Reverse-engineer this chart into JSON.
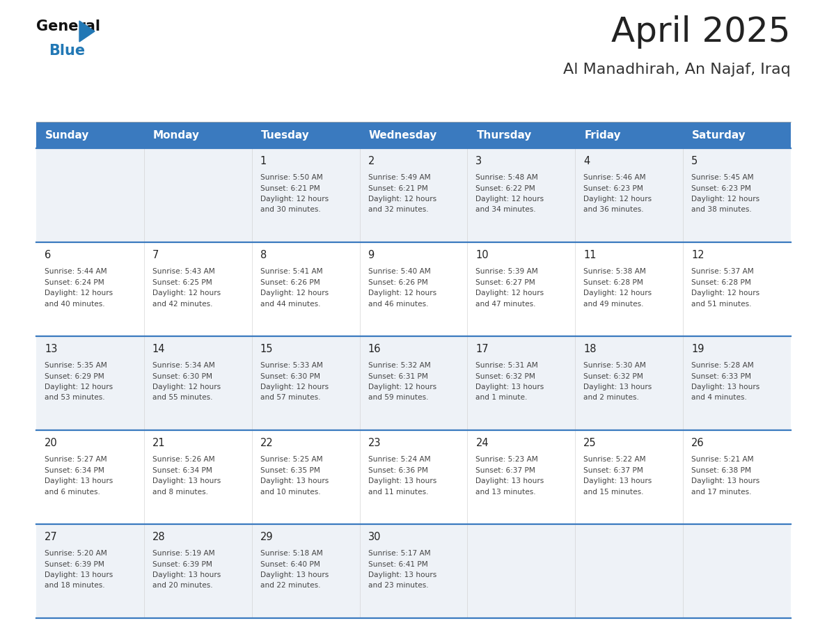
{
  "title": "April 2025",
  "subtitle": "Al Manadhirah, An Najaf, Iraq",
  "days_of_week": [
    "Sunday",
    "Monday",
    "Tuesday",
    "Wednesday",
    "Thursday",
    "Friday",
    "Saturday"
  ],
  "header_bg": "#3a7abf",
  "header_text": "#ffffff",
  "row_bg_light": "#eef2f7",
  "row_bg_white": "#ffffff",
  "week_divider": "#3a7abf",
  "title_color": "#222222",
  "subtitle_color": "#333333",
  "day_number_color": "#222222",
  "cell_text_color": "#444444",
  "logo_general_color": "#111111",
  "logo_blue_color": "#2278b5",
  "calendar_data": [
    [
      null,
      null,
      {
        "day": 1,
        "sunrise": "5:50 AM",
        "sunset": "6:21 PM",
        "daylight": "12 hours\nand 30 minutes."
      },
      {
        "day": 2,
        "sunrise": "5:49 AM",
        "sunset": "6:21 PM",
        "daylight": "12 hours\nand 32 minutes."
      },
      {
        "day": 3,
        "sunrise": "5:48 AM",
        "sunset": "6:22 PM",
        "daylight": "12 hours\nand 34 minutes."
      },
      {
        "day": 4,
        "sunrise": "5:46 AM",
        "sunset": "6:23 PM",
        "daylight": "12 hours\nand 36 minutes."
      },
      {
        "day": 5,
        "sunrise": "5:45 AM",
        "sunset": "6:23 PM",
        "daylight": "12 hours\nand 38 minutes."
      }
    ],
    [
      {
        "day": 6,
        "sunrise": "5:44 AM",
        "sunset": "6:24 PM",
        "daylight": "12 hours\nand 40 minutes."
      },
      {
        "day": 7,
        "sunrise": "5:43 AM",
        "sunset": "6:25 PM",
        "daylight": "12 hours\nand 42 minutes."
      },
      {
        "day": 8,
        "sunrise": "5:41 AM",
        "sunset": "6:26 PM",
        "daylight": "12 hours\nand 44 minutes."
      },
      {
        "day": 9,
        "sunrise": "5:40 AM",
        "sunset": "6:26 PM",
        "daylight": "12 hours\nand 46 minutes."
      },
      {
        "day": 10,
        "sunrise": "5:39 AM",
        "sunset": "6:27 PM",
        "daylight": "12 hours\nand 47 minutes."
      },
      {
        "day": 11,
        "sunrise": "5:38 AM",
        "sunset": "6:28 PM",
        "daylight": "12 hours\nand 49 minutes."
      },
      {
        "day": 12,
        "sunrise": "5:37 AM",
        "sunset": "6:28 PM",
        "daylight": "12 hours\nand 51 minutes."
      }
    ],
    [
      {
        "day": 13,
        "sunrise": "5:35 AM",
        "sunset": "6:29 PM",
        "daylight": "12 hours\nand 53 minutes."
      },
      {
        "day": 14,
        "sunrise": "5:34 AM",
        "sunset": "6:30 PM",
        "daylight": "12 hours\nand 55 minutes."
      },
      {
        "day": 15,
        "sunrise": "5:33 AM",
        "sunset": "6:30 PM",
        "daylight": "12 hours\nand 57 minutes."
      },
      {
        "day": 16,
        "sunrise": "5:32 AM",
        "sunset": "6:31 PM",
        "daylight": "12 hours\nand 59 minutes."
      },
      {
        "day": 17,
        "sunrise": "5:31 AM",
        "sunset": "6:32 PM",
        "daylight": "13 hours\nand 1 minute."
      },
      {
        "day": 18,
        "sunrise": "5:30 AM",
        "sunset": "6:32 PM",
        "daylight": "13 hours\nand 2 minutes."
      },
      {
        "day": 19,
        "sunrise": "5:28 AM",
        "sunset": "6:33 PM",
        "daylight": "13 hours\nand 4 minutes."
      }
    ],
    [
      {
        "day": 20,
        "sunrise": "5:27 AM",
        "sunset": "6:34 PM",
        "daylight": "13 hours\nand 6 minutes."
      },
      {
        "day": 21,
        "sunrise": "5:26 AM",
        "sunset": "6:34 PM",
        "daylight": "13 hours\nand 8 minutes."
      },
      {
        "day": 22,
        "sunrise": "5:25 AM",
        "sunset": "6:35 PM",
        "daylight": "13 hours\nand 10 minutes."
      },
      {
        "day": 23,
        "sunrise": "5:24 AM",
        "sunset": "6:36 PM",
        "daylight": "13 hours\nand 11 minutes."
      },
      {
        "day": 24,
        "sunrise": "5:23 AM",
        "sunset": "6:37 PM",
        "daylight": "13 hours\nand 13 minutes."
      },
      {
        "day": 25,
        "sunrise": "5:22 AM",
        "sunset": "6:37 PM",
        "daylight": "13 hours\nand 15 minutes."
      },
      {
        "day": 26,
        "sunrise": "5:21 AM",
        "sunset": "6:38 PM",
        "daylight": "13 hours\nand 17 minutes."
      }
    ],
    [
      {
        "day": 27,
        "sunrise": "5:20 AM",
        "sunset": "6:39 PM",
        "daylight": "13 hours\nand 18 minutes."
      },
      {
        "day": 28,
        "sunrise": "5:19 AM",
        "sunset": "6:39 PM",
        "daylight": "13 hours\nand 20 minutes."
      },
      {
        "day": 29,
        "sunrise": "5:18 AM",
        "sunset": "6:40 PM",
        "daylight": "13 hours\nand 22 minutes."
      },
      {
        "day": 30,
        "sunrise": "5:17 AM",
        "sunset": "6:41 PM",
        "daylight": "13 hours\nand 23 minutes."
      },
      null,
      null,
      null
    ]
  ]
}
